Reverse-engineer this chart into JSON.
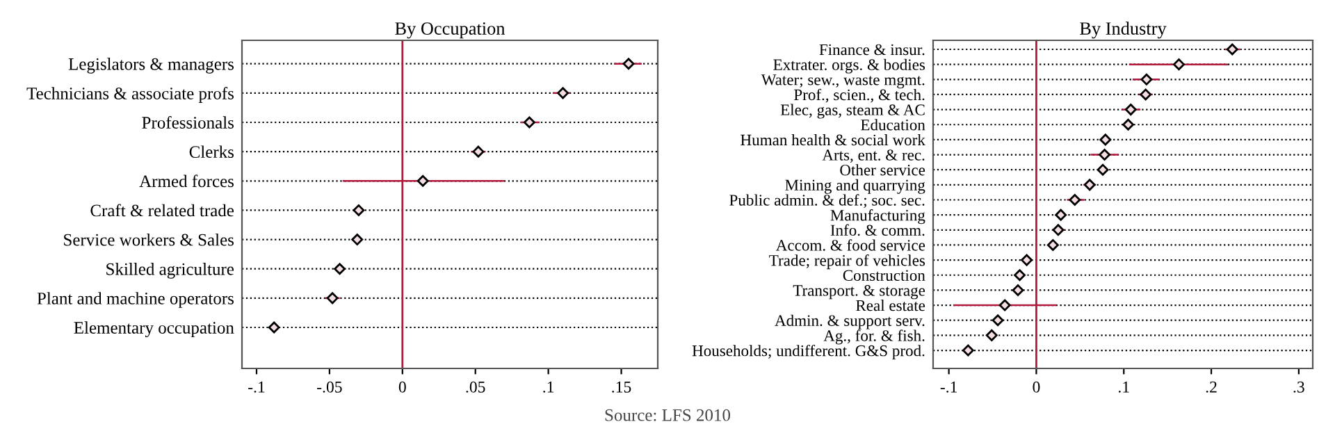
{
  "chart_data": [
    {
      "type": "scatter",
      "orientation": "horizontal",
      "title": "By Occupation",
      "marker": "diamond",
      "grid": "y",
      "categories": [
        "Legislators & managers",
        "Technicians & associate profs",
        "Professionals",
        "Clerks",
        "Armed forces",
        "Craft & related trade",
        "Service workers & Sales",
        "Skilled agriculture",
        "Plant and machine operators",
        "Elementary occupation"
      ],
      "series": [
        {
          "color": "#000000",
          "values": [
            0.155,
            0.11,
            0.087,
            0.052,
            0.014,
            -0.03,
            -0.031,
            -0.043,
            -0.048,
            -0.088
          ],
          "errors": [
            [
              0.145,
              0.164
            ],
            [
              0.103,
              0.115
            ],
            [
              0.081,
              0.094
            ],
            [
              0.047,
              0.057
            ],
            [
              -0.041,
              0.07
            ],
            null,
            null,
            null,
            [
              -0.053,
              -0.043
            ],
            null
          ]
        }
      ],
      "xlim": [
        -0.11,
        0.175
      ],
      "xticks": [
        {
          "value": -0.1,
          "label": "-.1"
        },
        {
          "value": -0.05,
          "label": "-.05"
        },
        0,
        {
          "value": 0.05,
          "label": ".05"
        },
        {
          "value": 0.1,
          "label": ".1"
        },
        {
          "value": 0.15,
          "label": ".15"
        }
      ],
      "ref_lines": [
        {
          "axis": "x",
          "value": 0,
          "color": "#b2183c"
        }
      ],
      "annotations": [
        "Source: LFS 2010"
      ]
    },
    {
      "type": "scatter",
      "orientation": "horizontal",
      "title": "By Industry",
      "marker": "diamond",
      "grid": "y",
      "categories": [
        "Finance & insur.",
        "Extrater. orgs. & bodies",
        "Water; sew., waste mgmt.",
        "Prof., scien., & tech.",
        "Elec, gas, steam & AC",
        "Education",
        "Human health & social work",
        "Arts, ent. & rec.",
        "Other service",
        "Mining and quarrying",
        "Public admin. & def.; soc. sec.",
        "Manufacturing",
        "Info. & comm.",
        "Accom. & food service",
        "Trade; repair of vehicles",
        "Construction",
        "Transport. & storage",
        "Real estate",
        "Admin. & support serv.",
        "Ag., for. & fish.",
        "Households; undifferent. G&S prod."
      ],
      "series": [
        {
          "color": "#000000",
          "values": [
            0.224,
            0.163,
            0.126,
            0.125,
            0.108,
            0.105,
            0.079,
            0.078,
            0.076,
            0.061,
            0.044,
            0.028,
            0.025,
            0.019,
            -0.011,
            -0.019,
            -0.021,
            -0.036,
            -0.044,
            -0.051,
            -0.078
          ],
          "errors": [
            [
              0.216,
              0.233
            ],
            [
              0.106,
              0.219
            ],
            [
              0.11,
              0.141
            ],
            [
              0.117,
              0.133
            ],
            [
              0.098,
              0.119
            ],
            null,
            null,
            [
              0.062,
              0.094
            ],
            null,
            [
              0.054,
              0.068
            ],
            [
              0.035,
              0.055
            ],
            null,
            [
              0.018,
              0.032
            ],
            null,
            null,
            null,
            null,
            [
              -0.095,
              0.023
            ],
            null,
            null,
            null
          ]
        }
      ],
      "xlim": [
        -0.118,
        0.316
      ],
      "xticks": [
        {
          "value": -0.1,
          "label": "-.1"
        },
        0,
        {
          "value": 0.1,
          "label": ".1"
        },
        {
          "value": 0.2,
          "label": ".2"
        },
        {
          "value": 0.3,
          "label": ".3"
        }
      ],
      "ref_lines": [
        {
          "axis": "x",
          "value": 0,
          "color": "#b2183c"
        }
      ]
    }
  ]
}
